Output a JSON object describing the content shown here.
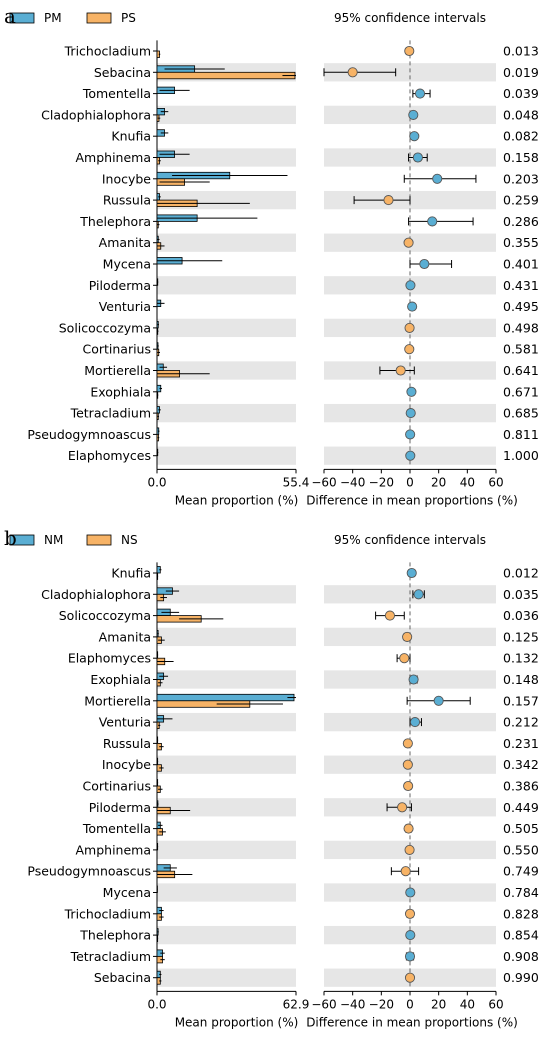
{
  "colors": {
    "blue": "#5aaed3",
    "orange": "#f7b366",
    "stripe": "#e6e6e6"
  },
  "chart_data": [
    {
      "type": "bar",
      "panel_label": "a",
      "legend": [
        {
          "name": "PM",
          "color": "#5aaed3"
        },
        {
          "name": "PS",
          "color": "#f7b366"
        }
      ],
      "ci_title": "95% confidence intervals",
      "left_xlabel": "Mean proportion (%)",
      "right_xlabel": "Difference in mean proportions (%)",
      "left_ticks": [
        "0.0",
        "55.4"
      ],
      "left_xlim": [
        0,
        55.4
      ],
      "right_xlim": [
        -60,
        60
      ],
      "right_ticks": [
        "−60",
        "−40",
        "−20",
        "0",
        "20",
        "40",
        "60"
      ],
      "categories": [
        "Trichocladium",
        "Sebacina",
        "Tomentella",
        "Cladophialophora",
        "Knufia",
        "Amphinema",
        "Inocybe",
        "Russula",
        "Thelephora",
        "Amanita",
        "Mycena",
        "Piloderma",
        "Venturia",
        "Solicoccozyma",
        "Cortinarius",
        "Mortierella",
        "Exophiala",
        "Tetracladium",
        "Pseudogymnoascus",
        "Elaphomyces"
      ],
      "series": [
        {
          "name": "PM",
          "values": [
            0.0,
            15.0,
            7.0,
            3.0,
            3.0,
            7.0,
            29.0,
            1.0,
            16.0,
            0.5,
            10.0,
            0.3,
            1.5,
            0.5,
            0.4,
            2.5,
            1.5,
            1.0,
            0.7,
            0.3
          ],
          "errors": [
            0.2,
            12.0,
            6.0,
            1.5,
            1.5,
            6.0,
            23.0,
            0.5,
            24.0,
            0.5,
            16.0,
            0.2,
            1.5,
            0.3,
            0.3,
            1.5,
            0.5,
            0.5,
            0.3,
            0.2
          ]
        },
        {
          "name": "PS",
          "values": [
            1.0,
            55.0,
            0.0,
            0.8,
            0.0,
            1.0,
            11.0,
            16.0,
            0.5,
            1.5,
            0.0,
            0.0,
            0.0,
            0.3,
            0.7,
            9.0,
            0.3,
            0.5,
            0.6,
            0.0
          ],
          "errors": [
            0.3,
            5.0,
            0.0,
            0.5,
            0.0,
            0.5,
            10.0,
            21.0,
            0.5,
            1.5,
            0.0,
            0.0,
            0.0,
            0.3,
            0.5,
            12.0,
            0.2,
            0.3,
            0.3,
            0.0
          ]
        }
      ],
      "differences": [
        {
          "value": -0.5,
          "ci": [
            -1.0,
            0.0
          ],
          "favors": "PS"
        },
        {
          "value": -40.0,
          "ci": [
            -60.0,
            -10.0
          ],
          "favors": "PS"
        },
        {
          "value": 7.0,
          "ci": [
            2.0,
            14.0
          ],
          "favors": "PM"
        },
        {
          "value": 2.3,
          "ci": [
            0.8,
            3.8
          ],
          "favors": "PM"
        },
        {
          "value": 3.0,
          "ci": [
            1.5,
            4.5
          ],
          "favors": "PM"
        },
        {
          "value": 5.5,
          "ci": [
            -1.0,
            12.0
          ],
          "favors": "PM"
        },
        {
          "value": 19.0,
          "ci": [
            -4.0,
            46.0
          ],
          "favors": "PM"
        },
        {
          "value": -15.0,
          "ci": [
            -39.0,
            0.0
          ],
          "favors": "PS"
        },
        {
          "value": 15.5,
          "ci": [
            -1.0,
            44.0
          ],
          "favors": "PM"
        },
        {
          "value": -1.0,
          "ci": [
            -2.5,
            0.5
          ],
          "favors": "PS"
        },
        {
          "value": 10.0,
          "ci": [
            0.0,
            29.0
          ],
          "favors": "PM"
        },
        {
          "value": 0.3,
          "ci": [
            0.0,
            0.6
          ],
          "favors": "PM"
        },
        {
          "value": 1.5,
          "ci": [
            0.0,
            3.0
          ],
          "favors": "PM"
        },
        {
          "value": -0.3,
          "ci": [
            -0.8,
            0.2
          ],
          "favors": "PS"
        },
        {
          "value": -0.5,
          "ci": [
            -1.0,
            0.0
          ],
          "favors": "PS"
        },
        {
          "value": -6.5,
          "ci": [
            -21.0,
            3.0
          ],
          "favors": "PS"
        },
        {
          "value": 1.0,
          "ci": [
            0.4,
            1.6
          ],
          "favors": "PM"
        },
        {
          "value": 0.5,
          "ci": [
            -0.2,
            1.2
          ],
          "favors": "PM"
        },
        {
          "value": 0.1,
          "ci": [
            -0.3,
            0.5
          ],
          "favors": "PM"
        },
        {
          "value": 0.2,
          "ci": [
            -0.1,
            0.5
          ],
          "favors": "PM"
        }
      ],
      "p_values": [
        "0.013",
        "0.019",
        "0.039",
        "0.048",
        "0.082",
        "0.158",
        "0.203",
        "0.259",
        "0.286",
        "0.355",
        "0.401",
        "0.431",
        "0.495",
        "0.498",
        "0.581",
        "0.641",
        "0.671",
        "0.685",
        "0.811",
        "1.000"
      ]
    },
    {
      "type": "bar",
      "panel_label": "b",
      "legend": [
        {
          "name": "NM",
          "color": "#5aaed3"
        },
        {
          "name": "NS",
          "color": "#f7b366"
        }
      ],
      "ci_title": "95% confidence intervals",
      "left_xlabel": "Mean proportion (%)",
      "right_xlabel": "Difference in mean proportions (%)",
      "left_ticks": [
        "0.0",
        "62.9"
      ],
      "left_xlim": [
        0,
        62.9
      ],
      "right_xlim": [
        -60,
        60
      ],
      "right_ticks": [
        "−60",
        "−40",
        "−20",
        "0",
        "20",
        "40",
        "60"
      ],
      "categories": [
        "Knufia",
        "Cladophialophora",
        "Solicoccozyma",
        "Amanita",
        "Elaphomyces",
        "Exophiala",
        "Mortierella",
        "Venturia",
        "Russula",
        "Inocybe",
        "Cortinarius",
        "Piloderma",
        "Tomentella",
        "Amphinema",
        "Pseudogymnoascus",
        "Mycena",
        "Trichocladium",
        "Thelephora",
        "Tetracladium",
        "Sebacina"
      ],
      "series": [
        {
          "name": "NM",
          "values": [
            1.5,
            7.0,
            6.0,
            0.5,
            0.3,
            3.0,
            62.0,
            3.0,
            0.3,
            0.3,
            0.3,
            0.4,
            1.5,
            0.3,
            6.0,
            0.2,
            2.0,
            0.5,
            2.5,
            1.5
          ],
          "errors": [
            0.5,
            3.0,
            4.0,
            0.3,
            0.2,
            2.0,
            3.0,
            4.0,
            0.2,
            0.2,
            0.2,
            0.3,
            1.0,
            0.2,
            3.0,
            0.1,
            1.0,
            0.3,
            1.0,
            0.5
          ]
        },
        {
          "name": "NS",
          "values": [
            0.3,
            3.0,
            20.0,
            2.0,
            3.5,
            1.5,
            42.0,
            1.0,
            2.0,
            2.0,
            1.5,
            6.0,
            2.5,
            0.0,
            8.0,
            0.0,
            2.0,
            0.3,
            2.5,
            1.5
          ],
          "errors": [
            0.2,
            1.5,
            10.0,
            1.5,
            4.0,
            1.0,
            15.0,
            0.5,
            1.0,
            1.0,
            1.0,
            9.0,
            1.5,
            0.0,
            8.0,
            0.0,
            1.0,
            0.2,
            1.0,
            0.5
          ]
        }
      ],
      "differences": [
        {
          "value": 1.2,
          "ci": [
            0.3,
            2.1
          ],
          "favors": "NM"
        },
        {
          "value": 6.0,
          "ci": [
            2.0,
            10.0
          ],
          "favors": "NM"
        },
        {
          "value": -14.0,
          "ci": [
            -24.0,
            -4.0
          ],
          "favors": "NS"
        },
        {
          "value": -2.0,
          "ci": [
            -4.0,
            0.0
          ],
          "favors": "NS"
        },
        {
          "value": -4.0,
          "ci": [
            -9.0,
            0.0
          ],
          "favors": "NS"
        },
        {
          "value": 2.5,
          "ci": [
            0.0,
            5.0
          ],
          "favors": "NM"
        },
        {
          "value": 20.0,
          "ci": [
            -2.0,
            42.0
          ],
          "favors": "NM"
        },
        {
          "value": 3.5,
          "ci": [
            0.0,
            8.0
          ],
          "favors": "NM"
        },
        {
          "value": -1.5,
          "ci": [
            -3.0,
            0.0
          ],
          "favors": "NS"
        },
        {
          "value": -1.5,
          "ci": [
            -3.0,
            0.0
          ],
          "favors": "NS"
        },
        {
          "value": -1.3,
          "ci": [
            -3.0,
            0.4
          ],
          "favors": "NS"
        },
        {
          "value": -5.5,
          "ci": [
            -16.0,
            1.0
          ],
          "favors": "NS"
        },
        {
          "value": -1.0,
          "ci": [
            -3.0,
            1.0
          ],
          "favors": "NS"
        },
        {
          "value": -0.3,
          "ci": [
            -0.6,
            0.0
          ],
          "favors": "NS"
        },
        {
          "value": -3.0,
          "ci": [
            -13.0,
            6.0
          ],
          "favors": "NS"
        },
        {
          "value": 0.2,
          "ci": [
            0.0,
            0.4
          ],
          "favors": "NM"
        },
        {
          "value": 0.0,
          "ci": [
            -2.0,
            2.0
          ],
          "favors": "NS"
        },
        {
          "value": 0.2,
          "ci": [
            -0.2,
            0.6
          ],
          "favors": "NM"
        },
        {
          "value": 0.0,
          "ci": [
            -2.5,
            2.5
          ],
          "favors": "NM"
        },
        {
          "value": 0.0,
          "ci": [
            -1.0,
            1.0
          ],
          "favors": "NS"
        }
      ],
      "p_values": [
        "0.012",
        "0.035",
        "0.036",
        "0.125",
        "0.132",
        "0.148",
        "0.157",
        "0.212",
        "0.231",
        "0.342",
        "0.386",
        "0.449",
        "0.505",
        "0.550",
        "0.749",
        "0.784",
        "0.828",
        "0.854",
        "0.908",
        "0.990"
      ]
    }
  ]
}
